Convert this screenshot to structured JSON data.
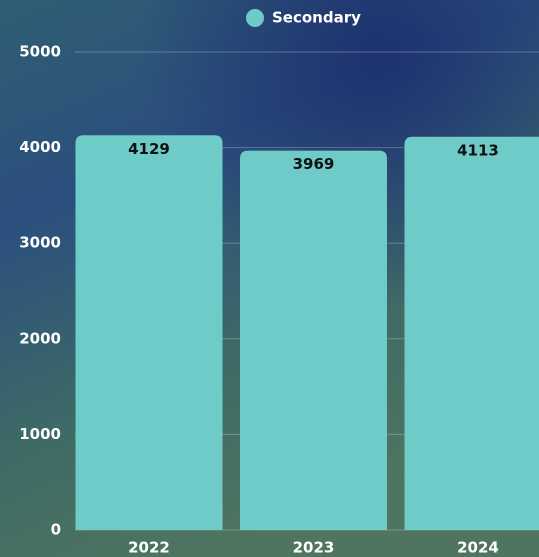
{
  "chart_data": {
    "type": "bar",
    "categories": [
      "2022",
      "2023",
      "2024"
    ],
    "series": [
      {
        "name": "Secondary",
        "color": "#6ecbc8",
        "values": [
          4129,
          3969,
          4113
        ]
      }
    ],
    "ylim": [
      0,
      5000
    ],
    "yticks": [
      0,
      1000,
      2000,
      3000,
      4000,
      5000
    ],
    "grid": true,
    "legend": "top"
  }
}
